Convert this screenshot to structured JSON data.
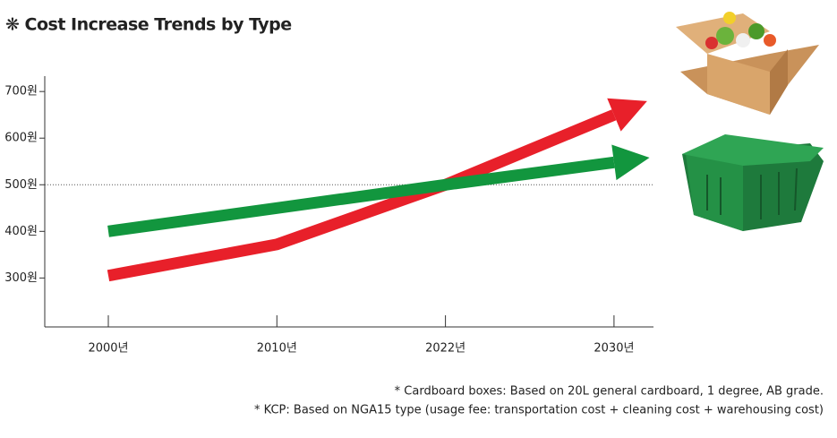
{
  "chart_data": {
    "type": "line",
    "title": "❋ Cost Increase Trends by Type",
    "categories": [
      "2000년",
      "2010년",
      "2022년",
      "2030년"
    ],
    "series": [
      {
        "color": "#e8202a",
        "values": [
          305,
          372,
          500,
          650
        ]
      },
      {
        "color": "#12963e",
        "values": [
          400,
          450,
          500,
          548
        ]
      }
    ],
    "ylim": [
      195,
      733
    ],
    "yticks": [
      {
        "value": 300,
        "label": "300원"
      },
      {
        "value": 400,
        "label": "400원"
      },
      {
        "value": 500,
        "label": "500원"
      },
      {
        "value": 600,
        "label": "600원"
      },
      {
        "value": 700,
        "label": "700원"
      }
    ],
    "reference_line": 500,
    "notes": [
      "*  Cardboard boxes: Based on 20L general cardboard, 1 degree, AB grade.",
      "*  KCP: Based on NGA15 type (usage fee: transportation cost + cleaning cost + warehousing cost)"
    ]
  }
}
